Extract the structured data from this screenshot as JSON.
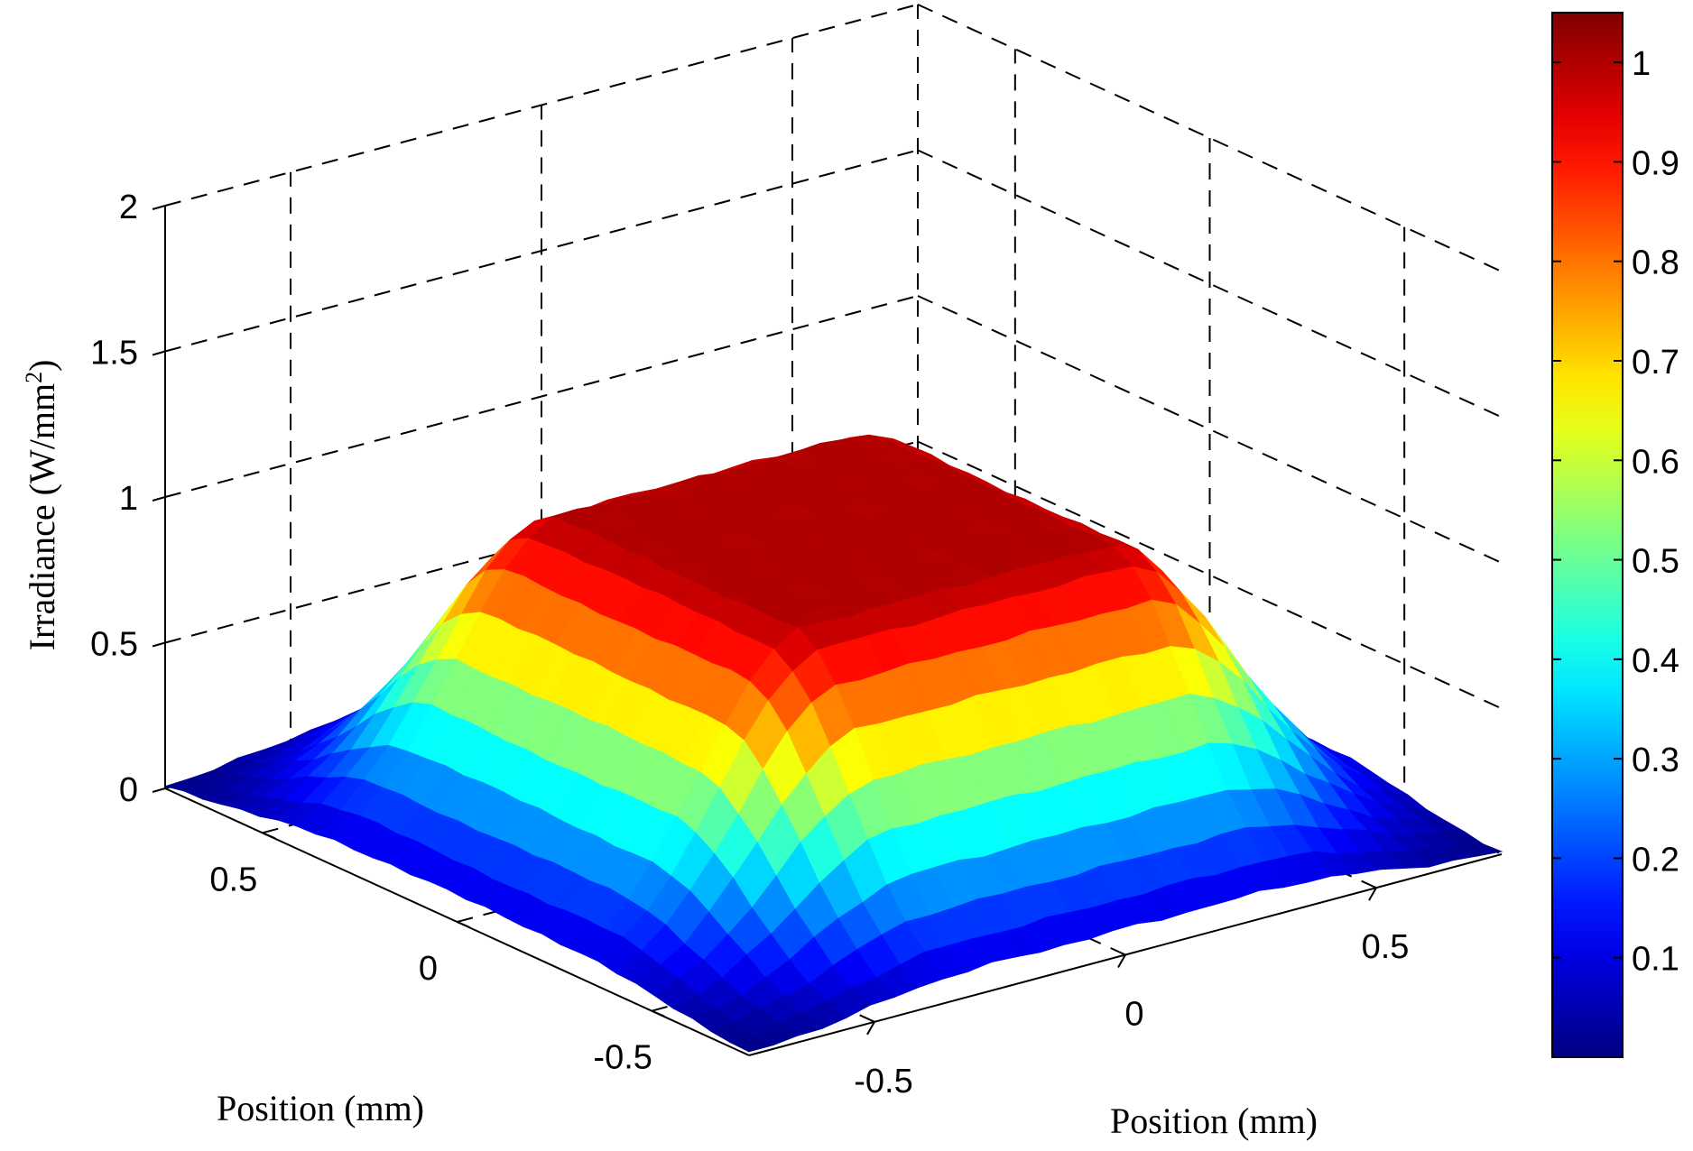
{
  "chart_data": {
    "type": "surface3d",
    "title": "",
    "zlabel": "Irradiance (W/mm",
    "zlabel_sup": "2",
    "zlabel_close": ")",
    "xlabel": "Position (mm)",
    "ylabel": "Position (mm)",
    "xlim": [
      -0.75,
      0.75
    ],
    "ylim": [
      -0.75,
      0.75
    ],
    "zlim": [
      0,
      2
    ],
    "x_ticks": [
      -0.5,
      0,
      0.5
    ],
    "x_tick_labels": [
      "-0.5",
      "0",
      "0.5"
    ],
    "y_ticks": [
      -0.5,
      0,
      0.5
    ],
    "y_tick_labels": [
      "-0.5",
      "0",
      "0.5"
    ],
    "z_ticks": [
      0,
      0.5,
      1,
      1.5,
      2
    ],
    "z_tick_labels": [
      "0",
      "0.5",
      "1",
      "1.5",
      "2"
    ],
    "grid": true,
    "grid_resolution": 31,
    "surface_model": "flat-top irradiance profile: plateau ~1.0 for |x|,|y| <= 0.3 mm, Gaussian-like roll-off to ~0 at |x|,|y| = 0.75 mm",
    "plateau_value": 1.0,
    "corner_value": 0.0,
    "edge_midpoint_value": 0.25,
    "colormap": "jet",
    "colorbar": {
      "range": [
        0.0,
        1.05
      ],
      "ticks": [
        0.1,
        0.2,
        0.3,
        0.4,
        0.5,
        0.6,
        0.7,
        0.8,
        0.9,
        1
      ],
      "tick_labels": [
        "0.1",
        "0.2",
        "0.3",
        "0.4",
        "0.5",
        "0.6",
        "0.7",
        "0.8",
        "0.9",
        "1"
      ]
    }
  }
}
